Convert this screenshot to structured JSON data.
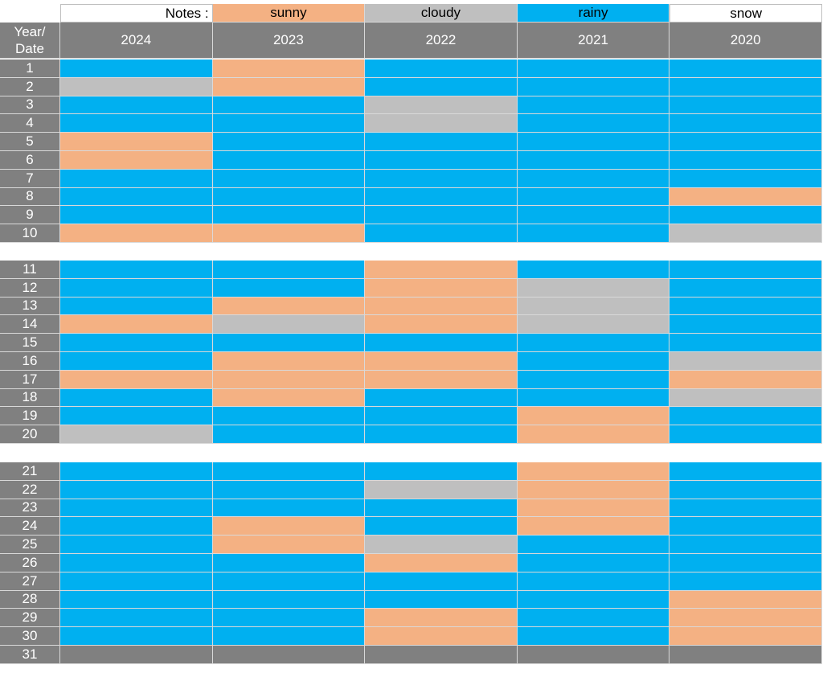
{
  "legend": {
    "label": "Notes :",
    "items": [
      {
        "name": "sunny",
        "color": "#f4b183"
      },
      {
        "name": "cloudy",
        "color": "#bfbfbf"
      },
      {
        "name": "rainy",
        "color": "#00b0f0"
      },
      {
        "name": "snow",
        "color": "#ffffff"
      }
    ]
  },
  "header": {
    "corner": [
      "Year/",
      "Date"
    ],
    "years": [
      "2024",
      "2023",
      "2022",
      "2021",
      "2020"
    ]
  },
  "groups": [
    [
      {
        "date": 1,
        "weather": [
          "rainy",
          "sunny",
          "rainy",
          "rainy",
          "rainy"
        ]
      },
      {
        "date": 2,
        "weather": [
          "cloudy",
          "sunny",
          "rainy",
          "rainy",
          "rainy"
        ]
      },
      {
        "date": 3,
        "weather": [
          "rainy",
          "rainy",
          "cloudy",
          "rainy",
          "rainy"
        ]
      },
      {
        "date": 4,
        "weather": [
          "rainy",
          "rainy",
          "cloudy",
          "rainy",
          "rainy"
        ]
      },
      {
        "date": 5,
        "weather": [
          "sunny",
          "rainy",
          "rainy",
          "rainy",
          "rainy"
        ]
      },
      {
        "date": 6,
        "weather": [
          "sunny",
          "rainy",
          "rainy",
          "rainy",
          "rainy"
        ]
      },
      {
        "date": 7,
        "weather": [
          "rainy",
          "rainy",
          "rainy",
          "rainy",
          "rainy"
        ]
      },
      {
        "date": 8,
        "weather": [
          "rainy",
          "rainy",
          "rainy",
          "rainy",
          "sunny"
        ]
      },
      {
        "date": 9,
        "weather": [
          "rainy",
          "rainy",
          "rainy",
          "rainy",
          "rainy"
        ]
      },
      {
        "date": 10,
        "weather": [
          "sunny",
          "sunny",
          "rainy",
          "rainy",
          "cloudy"
        ]
      }
    ],
    [
      {
        "date": 11,
        "weather": [
          "rainy",
          "rainy",
          "sunny",
          "rainy",
          "rainy"
        ]
      },
      {
        "date": 12,
        "weather": [
          "rainy",
          "rainy",
          "sunny",
          "cloudy",
          "rainy"
        ]
      },
      {
        "date": 13,
        "weather": [
          "rainy",
          "sunny",
          "sunny",
          "cloudy",
          "rainy"
        ]
      },
      {
        "date": 14,
        "weather": [
          "sunny",
          "cloudy",
          "sunny",
          "cloudy",
          "rainy"
        ]
      },
      {
        "date": 15,
        "weather": [
          "rainy",
          "rainy",
          "rainy",
          "rainy",
          "rainy"
        ]
      },
      {
        "date": 16,
        "weather": [
          "rainy",
          "sunny",
          "sunny",
          "rainy",
          "cloudy"
        ]
      },
      {
        "date": 17,
        "weather": [
          "sunny",
          "sunny",
          "sunny",
          "rainy",
          "sunny"
        ]
      },
      {
        "date": 18,
        "weather": [
          "rainy",
          "sunny",
          "rainy",
          "rainy",
          "cloudy"
        ]
      },
      {
        "date": 19,
        "weather": [
          "rainy",
          "rainy",
          "rainy",
          "sunny",
          "rainy"
        ]
      },
      {
        "date": 20,
        "weather": [
          "cloudy",
          "rainy",
          "rainy",
          "sunny",
          "rainy"
        ]
      }
    ],
    [
      {
        "date": 21,
        "weather": [
          "rainy",
          "rainy",
          "rainy",
          "sunny",
          "rainy"
        ]
      },
      {
        "date": 22,
        "weather": [
          "rainy",
          "rainy",
          "cloudy",
          "sunny",
          "rainy"
        ]
      },
      {
        "date": 23,
        "weather": [
          "rainy",
          "rainy",
          "rainy",
          "sunny",
          "rainy"
        ]
      },
      {
        "date": 24,
        "weather": [
          "rainy",
          "sunny",
          "rainy",
          "sunny",
          "rainy"
        ]
      },
      {
        "date": 25,
        "weather": [
          "rainy",
          "sunny",
          "cloudy",
          "rainy",
          "rainy"
        ]
      },
      {
        "date": 26,
        "weather": [
          "rainy",
          "rainy",
          "sunny",
          "rainy",
          "rainy"
        ]
      },
      {
        "date": 27,
        "weather": [
          "rainy",
          "rainy",
          "rainy",
          "rainy",
          "rainy"
        ]
      },
      {
        "date": 28,
        "weather": [
          "rainy",
          "rainy",
          "rainy",
          "rainy",
          "sunny"
        ]
      },
      {
        "date": 29,
        "weather": [
          "rainy",
          "rainy",
          "sunny",
          "rainy",
          "sunny"
        ]
      },
      {
        "date": 30,
        "weather": [
          "rainy",
          "rainy",
          "sunny",
          "rainy",
          "sunny"
        ]
      },
      {
        "date": 31,
        "weather": [
          null,
          null,
          null,
          null,
          null
        ]
      }
    ]
  ]
}
